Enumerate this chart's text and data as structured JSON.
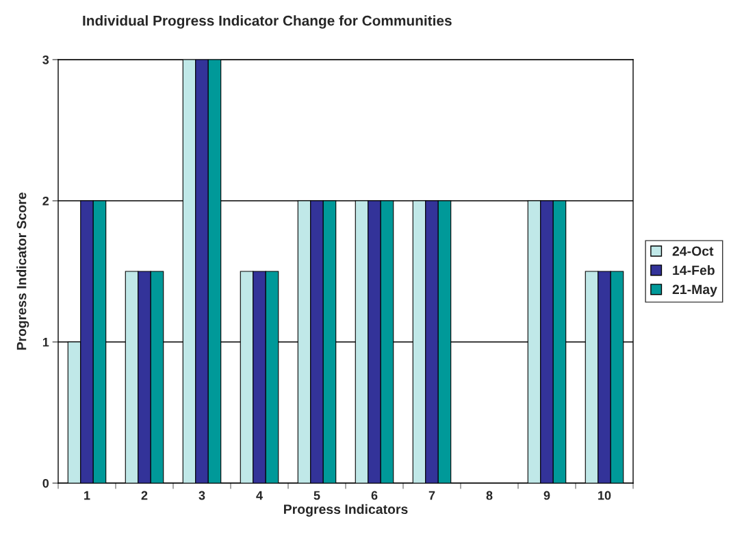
{
  "chart_data": {
    "type": "bar",
    "title": "Individual Progress Indicator Change for Communities",
    "xlabel": "Progress Indicators",
    "ylabel": "Progress Indicator Score",
    "categories": [
      "1",
      "2",
      "3",
      "4",
      "5",
      "6",
      "7",
      "8",
      "9",
      "10"
    ],
    "series": [
      {
        "name": "24-Oct",
        "color": "#c0e8e8",
        "values": [
          1,
          1.5,
          3,
          1.5,
          2,
          2,
          2,
          null,
          2,
          1.5
        ]
      },
      {
        "name": "14-Feb",
        "color": "#333399",
        "values": [
          2,
          1.5,
          3,
          1.5,
          2,
          2,
          2,
          null,
          2,
          1.5
        ]
      },
      {
        "name": "21-May",
        "color": "#009999",
        "values": [
          2,
          1.5,
          3,
          1.5,
          2,
          2,
          2,
          null,
          2,
          1.5
        ]
      }
    ],
    "ylim": [
      0,
      3
    ],
    "yticks": [
      0,
      1,
      2,
      3
    ],
    "grid": "y",
    "legend": "right"
  }
}
